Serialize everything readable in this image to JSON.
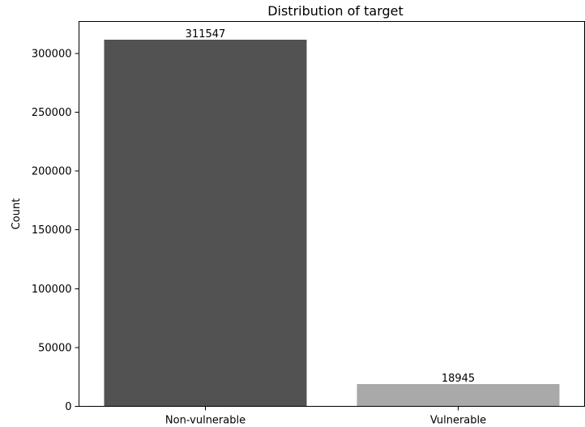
{
  "chart_data": {
    "type": "bar",
    "title": "Distribution of target",
    "xlabel": "",
    "ylabel": "Count",
    "categories": [
      "Non-vulnerable",
      "Vulnerable"
    ],
    "values": [
      311547,
      18945
    ],
    "data_labels": [
      "311547",
      "18945"
    ],
    "bar_colors": [
      "#525252",
      "#a9a9a9"
    ],
    "ylim": [
      0,
      327124
    ],
    "yticks": [
      0,
      50000,
      100000,
      150000,
      200000,
      250000,
      300000
    ],
    "ytick_labels": [
      "0",
      "50000",
      "100000",
      "150000",
      "200000",
      "250000",
      "300000"
    ],
    "grid": false,
    "legend": "none"
  }
}
